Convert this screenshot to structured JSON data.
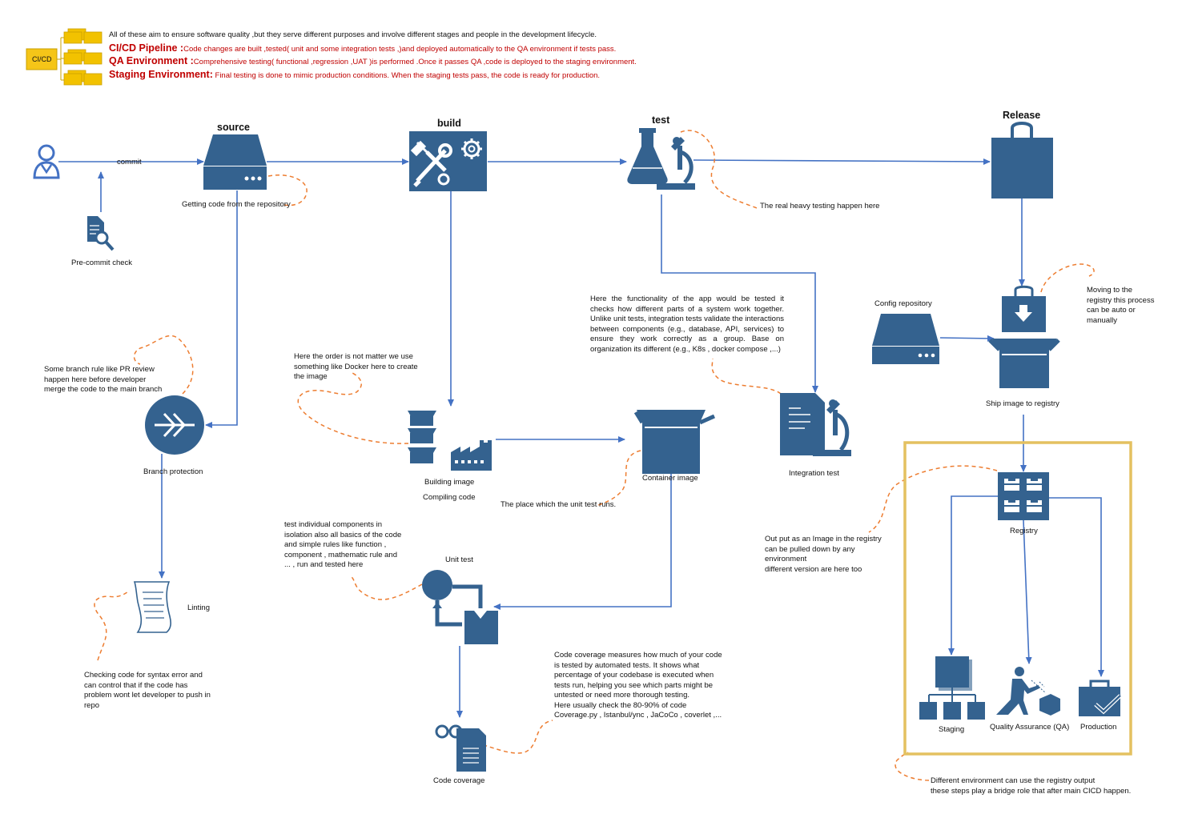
{
  "legend": {
    "box_label": "CI/CD",
    "intro": "All of these aim to ensure software quality ,but they serve different purposes and involve different stages and people in the development lifecycle.",
    "items": [
      {
        "title": "CI/CD Pipeline :",
        "text": "Code changes are built ,tested( unit and some integration tests ,)and deployed automatically to the QA environment if tests pass."
      },
      {
        "title": "QA Environment :",
        "text": "Comprehensive testing( functional ,regression ,UAT )is performed .Once it passes QA ,code is deployed to the staging environment."
      },
      {
        "title": "Staging Environment:",
        "text": " Final testing is done to mimic production conditions. When the staging tests pass, the code is ready for production."
      }
    ]
  },
  "stages": {
    "source": "source",
    "build": "build",
    "test": "test",
    "release": "Release"
  },
  "labels": {
    "commit": "commit",
    "getting_code": "Getting code from the repository",
    "precommit": "Pre-commit check",
    "branch_protection": "Branch protection",
    "linting": "Linting",
    "building_image": "Building image",
    "compiling_code": "Compiling code",
    "container_image": "Container image",
    "unit_test": "Unit test",
    "code_coverage": "Code coverage",
    "integration_test": "Integration test",
    "config_repository": "Config repository",
    "ship_image": "Ship image to registry",
    "registry": "Registry",
    "staging": "Staging",
    "qa": "Quality Assurance (QA)",
    "production": "Production"
  },
  "notes": {
    "branch_rule": "Some branch rule like PR review happen here before developer merge the code to the main branch",
    "linting_note": "Checking code for syntax error and can control that if the code has problem wont let developer to push in repo",
    "docker_note": "Here the order is not matter we use something like Docker here to create the image",
    "unit_place": "The place which the unit test runs.",
    "unit_note": "test individual components in isolation also all basics of the code and simple rules like function , component , mathematic rule  and ... , run and tested here",
    "coverage_note": "Code coverage measures how much of your code is tested by automated tests. It shows what percentage of your codebase is executed when tests run, helping you see which parts might be untested or need more thorough testing.",
    "coverage_note2": "Here usually check the 80-90% of code",
    "coverage_note3": "Coverage.py , Istanbul/ync , JaCoCo , coverlet ,...",
    "heavy_testing": "The real heavy testing happen here",
    "integration_note": "Here the functionality of the app would be tested  it checks how different parts of a system work together. Unlike unit tests, integration tests validate the interactions between components (e.g., database, API, services) to ensure they work correctly as a group. Base on organization its different (e.g., K8s , docker compose ,...)",
    "moving_registry": "Moving to the registry this process can be auto or manually",
    "output_image": "Out put as an Image in the registry can be pulled down by any environment",
    "output_image2": " different version are here too",
    "env_note": "Different environment can use the registry output",
    "env_note2": "these steps play a bridge role that after main CICD happen."
  },
  "colors": {
    "icon_blue": "#34628f",
    "arrow_blue": "#4472c4",
    "dash_orange": "#ed7d31",
    "legend_yellow": "#f2c200",
    "frame_gold": "#e4c160",
    "title_red": "#c00000"
  }
}
